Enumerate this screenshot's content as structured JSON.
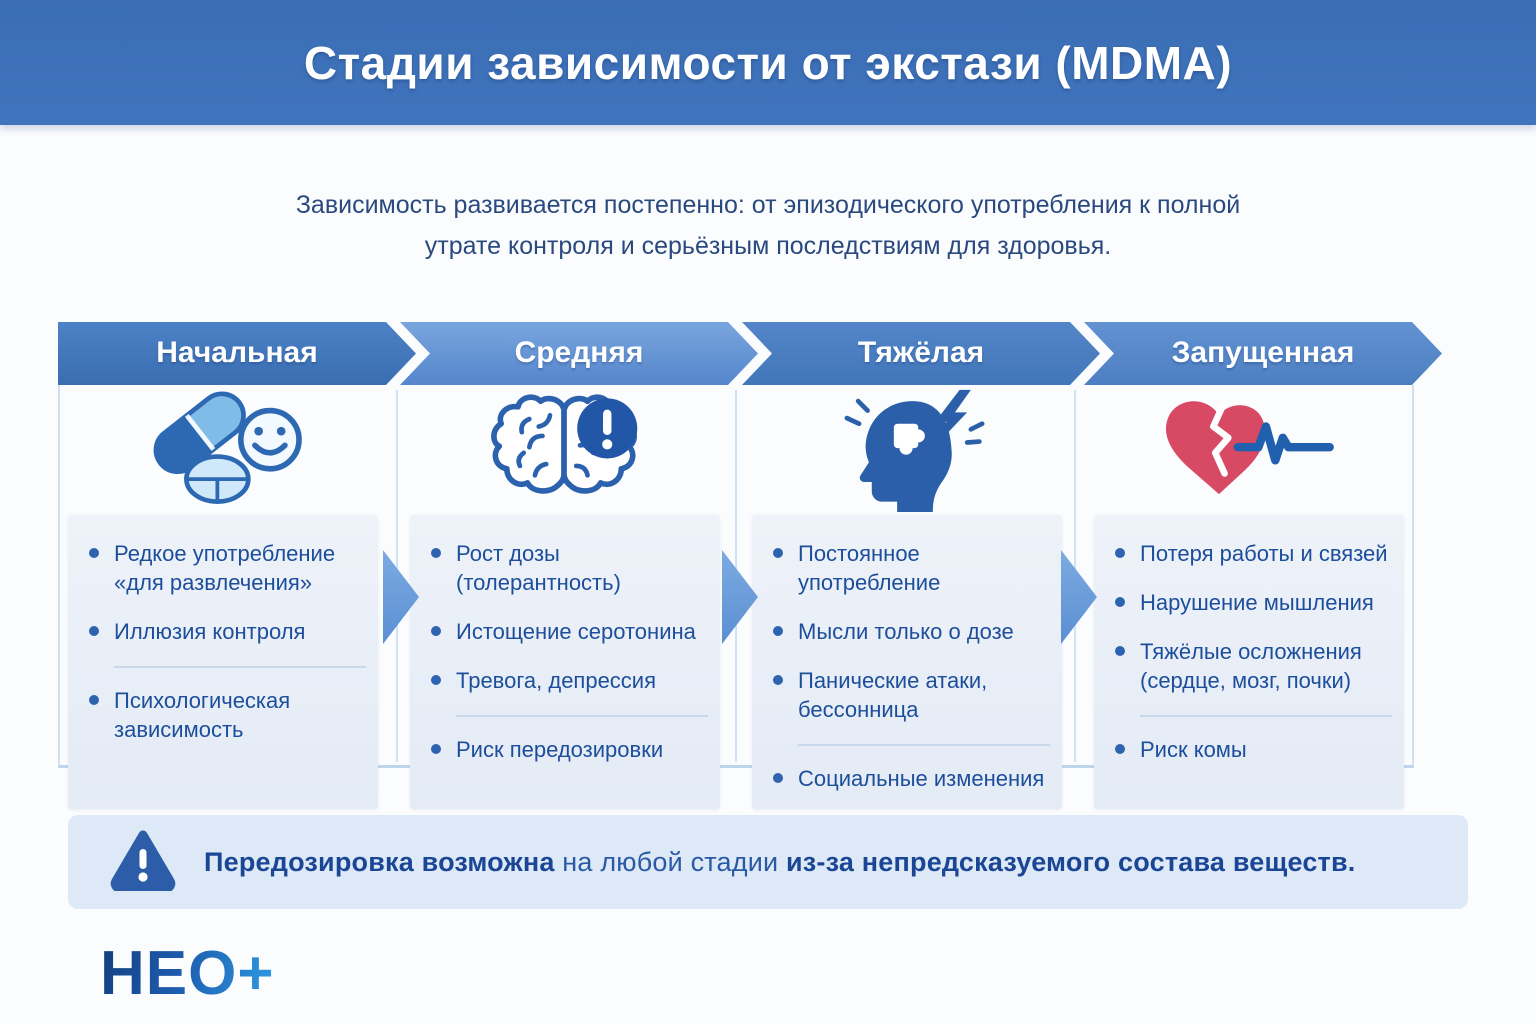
{
  "header": {
    "title": "Стадии зависимости от экстази (MDMA)"
  },
  "intro": {
    "text": "Зависимость развивается постепенно: от эпизодического употребления к полной утрате контроля и серьёзным последствиям для здоровья."
  },
  "stages": [
    {
      "label": "Начальная",
      "icon": "pills-smiley-icon",
      "items": [
        "Редкое употребление «для развлечения»",
        "Иллюзия контроля",
        "Психологическая зависимость"
      ]
    },
    {
      "label": "Средняя",
      "icon": "brain-alert-icon",
      "items": [
        "Рост дозы (толерантность)",
        "Истощение серотонина",
        "Тревога, депрессия",
        "Риск передозировки"
      ]
    },
    {
      "label": "Тяжёлая",
      "icon": "head-stress-icon",
      "items": [
        "Постоянное употребление",
        "Мысли только о дозе",
        "Панические атаки, бессонница",
        "Социальные изменения"
      ]
    },
    {
      "label": "Запущенная",
      "icon": "broken-heart-pulse-icon",
      "items": [
        "Потеря работы и связей",
        "Нарушение мышления",
        "Тяжёлые осложнения (сердце, мозг, почки)",
        "Риск комы"
      ]
    }
  ],
  "warning": {
    "segments": [
      {
        "text": "Передозировка возможна",
        "bold": true
      },
      {
        "text": " на любой стадии ",
        "bold": false
      },
      {
        "text": "из-за непредсказуемого состава веществ.",
        "bold": true
      }
    ]
  },
  "logo": {
    "text": "НЕО+"
  },
  "colors": {
    "header_bg": "#3b6fb7",
    "banner_stage1": "#4377bd",
    "banner_stage2": "#6397d5",
    "banner_stage3": "#4a7dc0",
    "banner_stage4": "#5789cc",
    "bullet_text": "#1c4e9c",
    "box_bg": "#e9eef7",
    "warning_bg": "#dde9f6",
    "warning_icon": "#2d5ca8",
    "heart_red": "#d84a63",
    "icon_blue": "#2b61ad"
  }
}
